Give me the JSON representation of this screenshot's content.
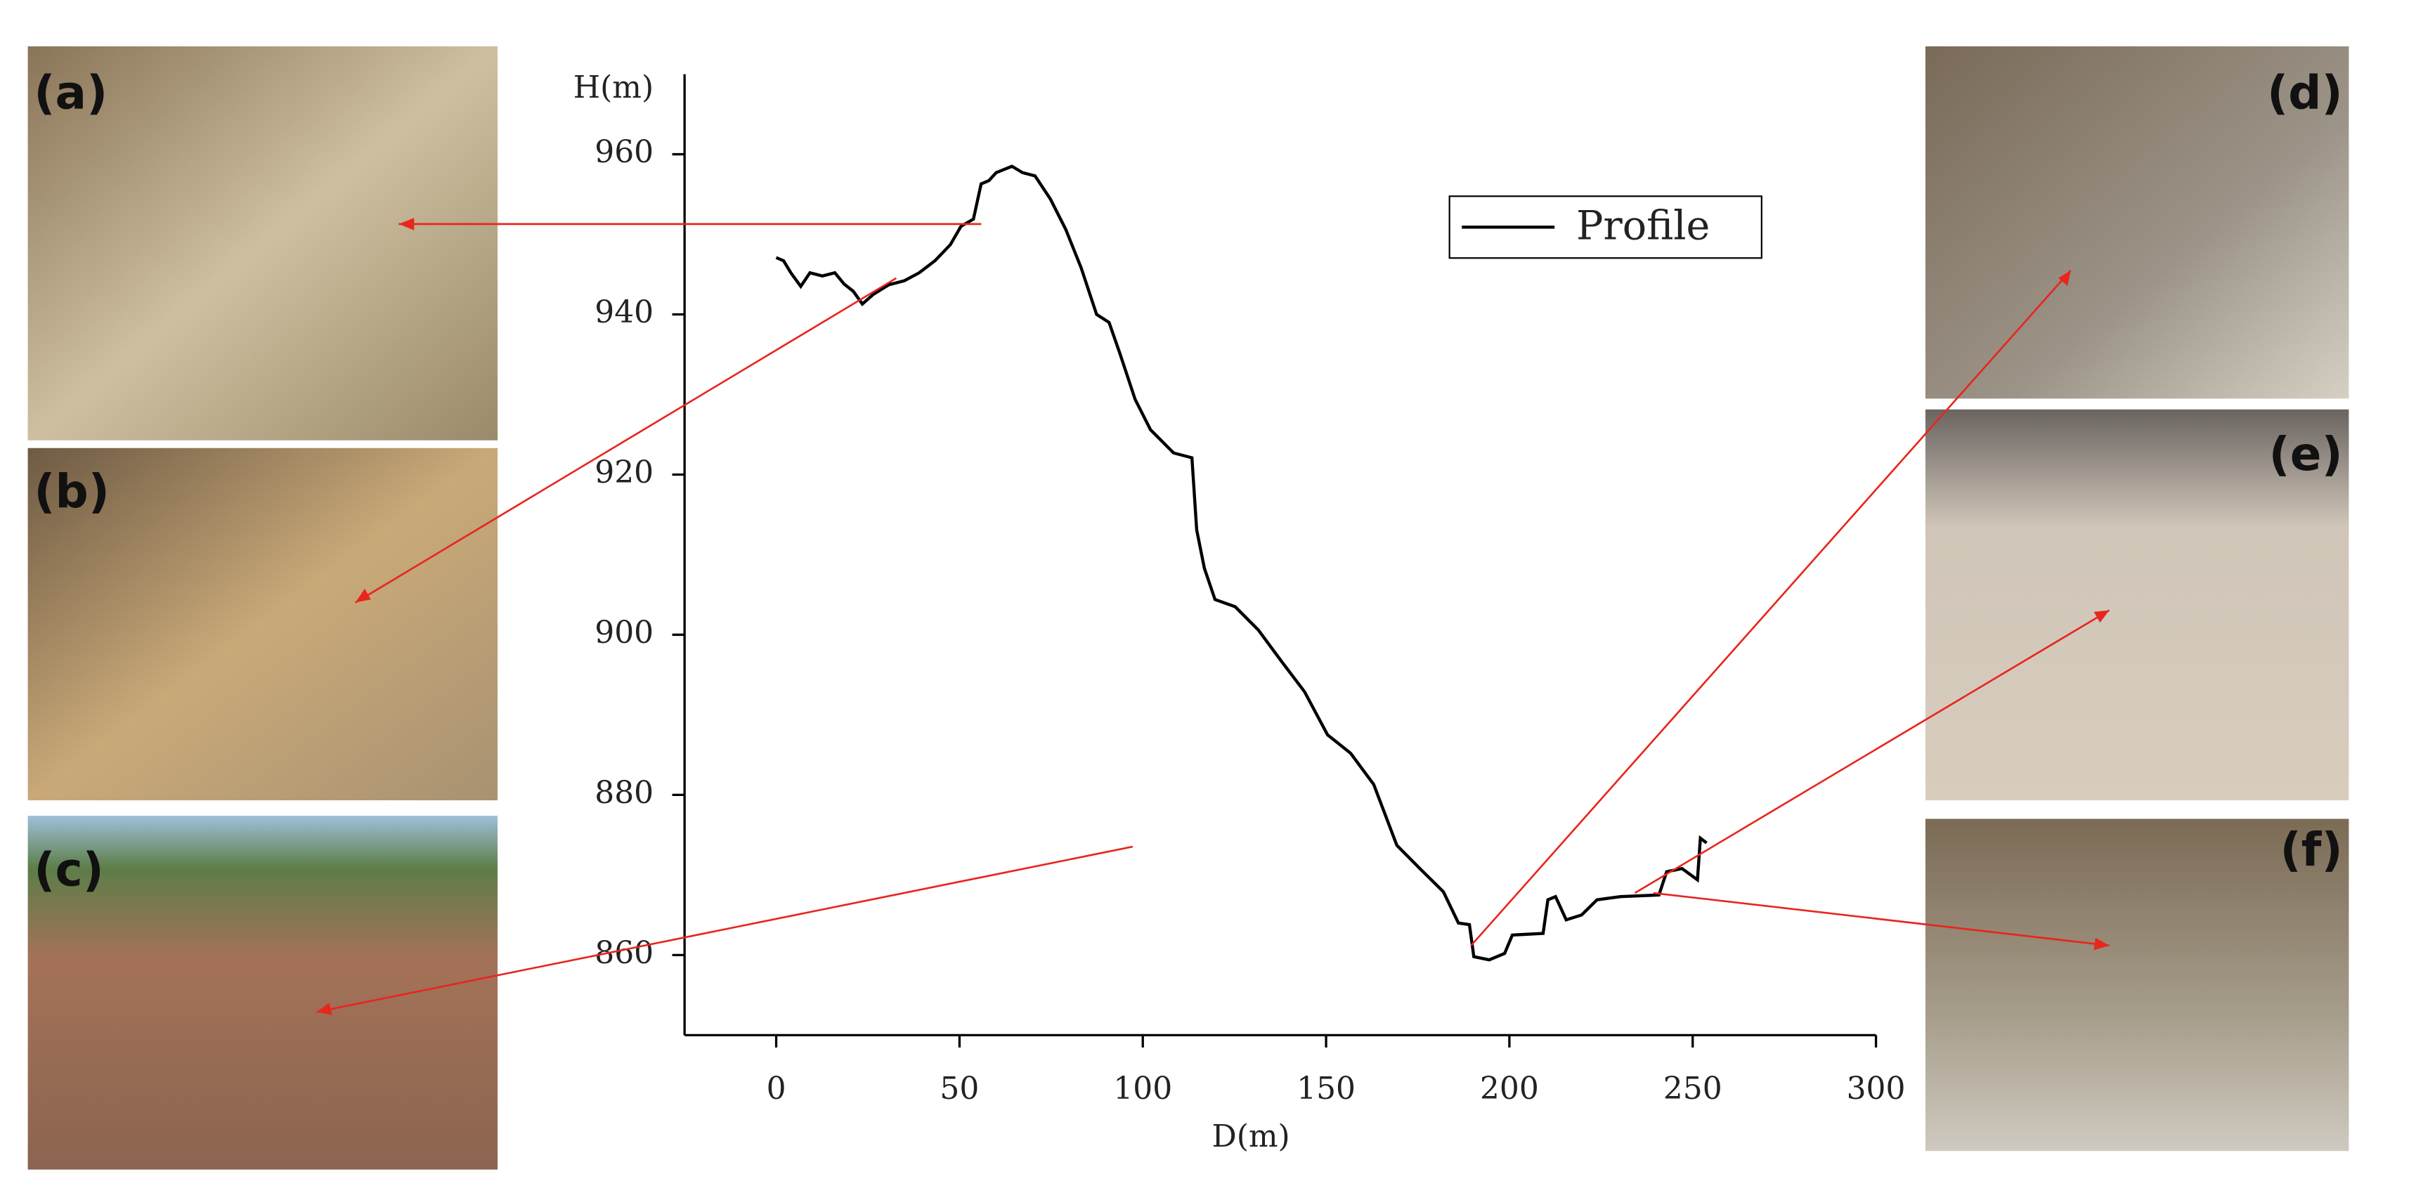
{
  "chart_data": {
    "type": "line",
    "x_label": "D(m)",
    "y_label": "H(m)",
    "x": [
      0,
      2,
      4,
      6.7,
      9.2,
      12.6,
      16,
      18.5,
      21,
      23.5,
      26.5,
      30.7,
      34.9,
      39,
      43.3,
      47.5,
      50.4,
      53.8,
      55.9,
      58,
      60,
      64.3,
      67.2,
      70.6,
      74.8,
      79,
      83.2,
      87.4,
      90.8,
      93.7,
      97.9,
      102.1,
      108.4,
      113.4,
      114.7,
      116.8,
      119.7,
      125.2,
      131.5,
      137.8,
      144.1,
      150.4,
      156.7,
      163,
      169.3,
      175.6,
      182,
      186.1,
      189.1,
      190.3,
      194.5,
      198.7,
      200.8,
      209.2,
      210.5,
      212.6,
      215.5,
      219.7,
      223.9,
      230.3,
      240.8,
      242.9,
      247.1,
      251.3,
      252.1,
      253.8
    ],
    "series": [
      {
        "name": "Profile",
        "color": "#000000",
        "values": [
          947.1,
          946.7,
          945.2,
          943.5,
          945.2,
          944.8,
          945.2,
          943.8,
          942.9,
          941.3,
          942.5,
          943.7,
          944.2,
          945.2,
          946.7,
          948.7,
          951,
          951.9,
          956.3,
          956.7,
          957.7,
          958.5,
          957.7,
          957.3,
          954.4,
          950.6,
          945.8,
          940,
          939,
          935.2,
          929.4,
          925.6,
          922.7,
          922.1,
          913.1,
          908.3,
          904.4,
          903.5,
          900.6,
          896.7,
          892.9,
          887.5,
          885.2,
          881.3,
          873.7,
          870.8,
          867.9,
          864,
          863.8,
          859.8,
          859.4,
          860.2,
          862.5,
          862.7,
          866.9,
          867.3,
          864.4,
          865,
          866.9,
          867.3,
          867.5,
          870.4,
          870.8,
          869.4,
          874.6,
          874
        ]
      }
    ],
    "xlim": [
      -25,
      300
    ],
    "xticks": [
      0,
      50,
      100,
      150,
      200,
      250,
      300
    ],
    "ylim": [
      850,
      970
    ],
    "yticks": [
      860,
      880,
      900,
      920,
      940,
      960
    ],
    "legend": "upper right"
  },
  "photo_labels": [
    "(a)",
    "(b)",
    "(c)",
    "(d)",
    "(e)",
    "(f)"
  ]
}
